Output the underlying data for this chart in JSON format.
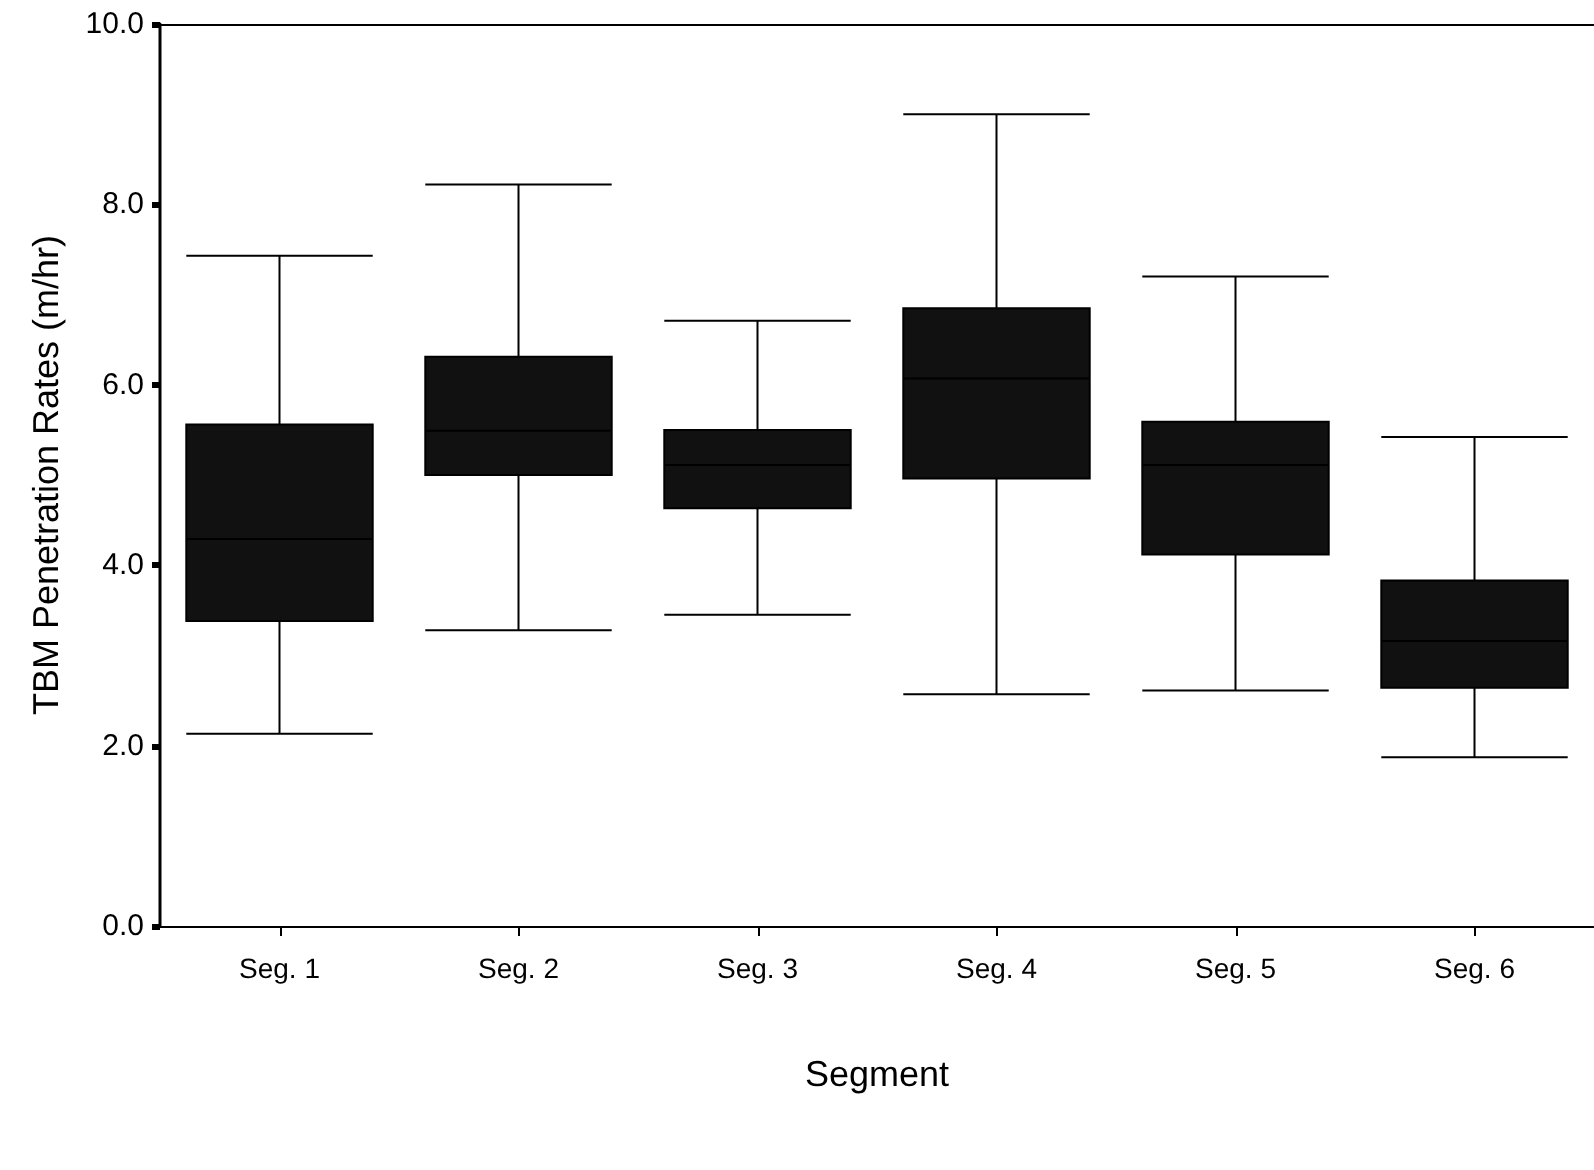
{
  "chart_data": {
    "type": "box",
    "xlabel": "Segment",
    "ylabel": "TBM Penetration Rates (m/hr)",
    "categories": [
      "Seg. 1",
      "Seg. 2",
      "Seg. 3",
      "Seg. 4",
      "Seg. 5",
      "Seg. 6"
    ],
    "color": "#111111",
    "boxes": [
      {
        "low": 2.13,
        "q1": 3.38,
        "median": 4.29,
        "q3": 5.56,
        "high": 7.43
      },
      {
        "low": 3.28,
        "q1": 5.0,
        "median": 5.49,
        "q3": 6.31,
        "high": 8.22
      },
      {
        "low": 3.45,
        "q1": 4.63,
        "median": 5.11,
        "q3": 5.5,
        "high": 6.71
      },
      {
        "low": 2.57,
        "q1": 4.96,
        "median": 6.07,
        "q3": 6.85,
        "high": 9.0
      },
      {
        "low": 2.61,
        "q1": 4.12,
        "median": 5.11,
        "q3": 5.59,
        "high": 7.2
      },
      {
        "low": 1.87,
        "q1": 2.64,
        "median": 3.16,
        "q3": 3.83,
        "high": 5.42
      }
    ],
    "ylim": [
      0,
      10
    ],
    "yticks": [
      {
        "value": 0,
        "label": "0.0"
      },
      {
        "value": 2,
        "label": "2.0"
      },
      {
        "value": 4,
        "label": "4.0"
      },
      {
        "value": 6,
        "label": "6.0"
      },
      {
        "value": 8,
        "label": "8.0"
      },
      {
        "value": 10,
        "label": "10.0"
      }
    ],
    "grid": false
  }
}
